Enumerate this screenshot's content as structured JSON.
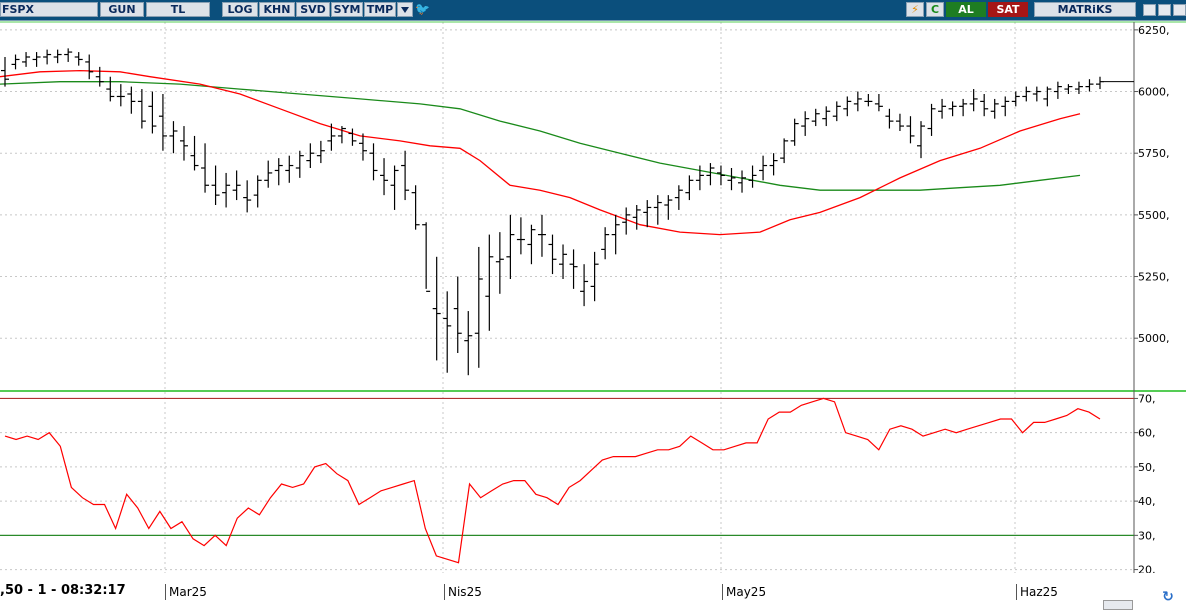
{
  "toolbar": {
    "symbol": "FSPX",
    "buttons": [
      "GUN",
      "TL",
      "LOG",
      "KHN",
      "SVD",
      "SYM",
      "TMP"
    ],
    "flash_icon": "⚡",
    "c_label": "C",
    "buy_label": "AL",
    "sell_label": "SAT",
    "brand": "MATRiKS"
  },
  "status": {
    "text": ",50 - 1 - 08:32:17"
  },
  "chart_data": [
    {
      "type": "ohlc",
      "y_ticks": [
        "6250,",
        "6000,",
        "5750,",
        "5500,",
        "5250,",
        "5000,"
      ],
      "y_tick_values": [
        6250,
        6000,
        5750,
        5500,
        5250,
        5000
      ],
      "ylim": [
        4790,
        6290
      ],
      "x_months": [
        "Mar25",
        "Nis25",
        "May25",
        "Haz25"
      ],
      "ohlc": [
        [
          6085,
          6140,
          6020,
          6050
        ],
        [
          6110,
          6150,
          6090,
          6130
        ],
        [
          6120,
          6160,
          6100,
          6140
        ],
        [
          6130,
          6160,
          6100,
          6140
        ],
        [
          6140,
          6170,
          6110,
          6150
        ],
        [
          6140,
          6170,
          6115,
          6150
        ],
        [
          6150,
          6175,
          6120,
          6160
        ],
        [
          6140,
          6160,
          6105,
          6130
        ],
        [
          6120,
          6150,
          6050,
          6080
        ],
        [
          6060,
          6100,
          6020,
          6040
        ],
        [
          6010,
          6060,
          5960,
          5980
        ],
        [
          5980,
          6030,
          5940,
          5980
        ],
        [
          5990,
          6020,
          5910,
          5960
        ],
        [
          5960,
          6010,
          5850,
          5880
        ],
        [
          5940,
          6000,
          5830,
          5860
        ],
        [
          5900,
          5990,
          5760,
          5820
        ],
        [
          5820,
          5880,
          5750,
          5840
        ],
        [
          5800,
          5860,
          5720,
          5780
        ],
        [
          5740,
          5820,
          5680,
          5700
        ],
        [
          5690,
          5790,
          5590,
          5620
        ],
        [
          5620,
          5700,
          5540,
          5580
        ],
        [
          5590,
          5670,
          5530,
          5620
        ],
        [
          5600,
          5680,
          5560,
          5620
        ],
        [
          5570,
          5640,
          5510,
          5560
        ],
        [
          5580,
          5660,
          5530,
          5640
        ],
        [
          5640,
          5720,
          5610,
          5670
        ],
        [
          5680,
          5730,
          5620,
          5700
        ],
        [
          5680,
          5740,
          5630,
          5700
        ],
        [
          5690,
          5760,
          5650,
          5740
        ],
        [
          5720,
          5790,
          5690,
          5750
        ],
        [
          5740,
          5800,
          5710,
          5760
        ],
        [
          5800,
          5870,
          5760,
          5820
        ],
        [
          5820,
          5860,
          5790,
          5850
        ],
        [
          5830,
          5850,
          5780,
          5800
        ],
        [
          5790,
          5830,
          5720,
          5760
        ],
        [
          5750,
          5790,
          5640,
          5680
        ],
        [
          5660,
          5730,
          5580,
          5640
        ],
        [
          5620,
          5700,
          5520,
          5680
        ],
        [
          5700,
          5760,
          5560,
          5600
        ],
        [
          5590,
          5620,
          5440,
          5460
        ],
        [
          5460,
          5470,
          5200,
          5190
        ],
        [
          5120,
          5330,
          4910,
          5100
        ],
        [
          5080,
          5190,
          4860,
          5050
        ],
        [
          5120,
          5250,
          4940,
          5020
        ],
        [
          4990,
          5110,
          4850,
          5010
        ],
        [
          5020,
          5370,
          4880,
          5240
        ],
        [
          5170,
          5420,
          5030,
          5330
        ],
        [
          5310,
          5430,
          5180,
          5320
        ],
        [
          5330,
          5500,
          5240,
          5420
        ],
        [
          5400,
          5490,
          5340,
          5400
        ],
        [
          5380,
          5460,
          5300,
          5440
        ],
        [
          5420,
          5500,
          5330,
          5420
        ],
        [
          5380,
          5420,
          5260,
          5320
        ],
        [
          5300,
          5380,
          5240,
          5340
        ],
        [
          5300,
          5360,
          5200,
          5290
        ],
        [
          5190,
          5300,
          5130,
          5230
        ],
        [
          5210,
          5350,
          5150,
          5300
        ],
        [
          5360,
          5450,
          5320,
          5420
        ],
        [
          5420,
          5500,
          5340,
          5460
        ],
        [
          5470,
          5530,
          5420,
          5500
        ],
        [
          5490,
          5540,
          5440,
          5520
        ],
        [
          5510,
          5560,
          5450,
          5530
        ],
        [
          5530,
          5580,
          5460,
          5550
        ],
        [
          5540,
          5580,
          5480,
          5560
        ],
        [
          5570,
          5620,
          5520,
          5600
        ],
        [
          5590,
          5660,
          5560,
          5640
        ],
        [
          5640,
          5700,
          5600,
          5660
        ],
        [
          5660,
          5710,
          5620,
          5690
        ],
        [
          5670,
          5700,
          5620,
          5660
        ],
        [
          5640,
          5690,
          5600,
          5650
        ],
        [
          5630,
          5680,
          5590,
          5650
        ],
        [
          5640,
          5700,
          5610,
          5660
        ],
        [
          5680,
          5740,
          5640,
          5700
        ],
        [
          5700,
          5750,
          5660,
          5720
        ],
        [
          5730,
          5810,
          5710,
          5800
        ],
        [
          5800,
          5890,
          5780,
          5870
        ],
        [
          5860,
          5920,
          5820,
          5890
        ],
        [
          5880,
          5930,
          5860,
          5910
        ],
        [
          5890,
          5940,
          5860,
          5920
        ],
        [
          5900,
          5960,
          5880,
          5940
        ],
        [
          5930,
          5980,
          5900,
          5960
        ],
        [
          5950,
          6000,
          5920,
          5970
        ],
        [
          5960,
          5990,
          5940,
          5960
        ],
        [
          5950,
          5990,
          5920,
          5940
        ],
        [
          5900,
          5930,
          5850,
          5880
        ],
        [
          5880,
          5910,
          5840,
          5860
        ],
        [
          5860,
          5900,
          5790,
          5820
        ],
        [
          5780,
          5880,
          5730,
          5860
        ],
        [
          5850,
          5950,
          5820,
          5930
        ],
        [
          5920,
          5970,
          5890,
          5940
        ],
        [
          5930,
          5960,
          5900,
          5940
        ],
        [
          5940,
          5970,
          5900,
          5950
        ],
        [
          5950,
          6010,
          5920,
          5970
        ],
        [
          5960,
          5990,
          5900,
          5930
        ],
        [
          5920,
          5970,
          5890,
          5950
        ],
        [
          5940,
          5980,
          5900,
          5960
        ],
        [
          5960,
          6000,
          5940,
          5980
        ],
        [
          5980,
          6020,
          5960,
          6000
        ],
        [
          5990,
          6020,
          5960,
          6000
        ],
        [
          5970,
          6020,
          5940,
          6010
        ],
        [
          6000,
          6040,
          5970,
          6020
        ],
        [
          6010,
          6030,
          5990,
          6020
        ],
        [
          6010,
          6040,
          5990,
          6020
        ],
        [
          6020,
          6050,
          6000,
          6030
        ],
        [
          6030,
          6060,
          6010,
          6040
        ]
      ],
      "ma_short": [
        [
          0,
          6060
        ],
        [
          40,
          6080
        ],
        [
          80,
          6085
        ],
        [
          120,
          6080
        ],
        [
          150,
          6060
        ],
        [
          200,
          6030
        ],
        [
          240,
          5990
        ],
        [
          280,
          5930
        ],
        [
          320,
          5870
        ],
        [
          360,
          5820
        ],
        [
          400,
          5800
        ],
        [
          430,
          5780
        ],
        [
          460,
          5770
        ],
        [
          480,
          5720
        ],
        [
          510,
          5620
        ],
        [
          540,
          5600
        ],
        [
          570,
          5570
        ],
        [
          600,
          5520
        ],
        [
          640,
          5460
        ],
        [
          680,
          5430
        ],
        [
          720,
          5420
        ],
        [
          760,
          5430
        ],
        [
          790,
          5480
        ],
        [
          820,
          5510
        ],
        [
          860,
          5570
        ],
        [
          900,
          5650
        ],
        [
          940,
          5720
        ],
        [
          980,
          5770
        ],
        [
          1020,
          5840
        ],
        [
          1060,
          5890
        ],
        [
          1080,
          5910
        ]
      ],
      "ma_long": [
        [
          0,
          6030
        ],
        [
          60,
          6040
        ],
        [
          120,
          6040
        ],
        [
          180,
          6030
        ],
        [
          240,
          6010
        ],
        [
          300,
          5990
        ],
        [
          360,
          5970
        ],
        [
          420,
          5950
        ],
        [
          460,
          5930
        ],
        [
          500,
          5880
        ],
        [
          540,
          5840
        ],
        [
          580,
          5790
        ],
        [
          620,
          5750
        ],
        [
          660,
          5710
        ],
        [
          700,
          5680
        ],
        [
          740,
          5650
        ],
        [
          780,
          5620
        ],
        [
          820,
          5600
        ],
        [
          870,
          5600
        ],
        [
          920,
          5600
        ],
        [
          960,
          5610
        ],
        [
          1000,
          5620
        ],
        [
          1040,
          5640
        ],
        [
          1080,
          5660
        ]
      ],
      "ma_short_color": "#ff0000",
      "ma_long_color": "#1a8a1a"
    },
    {
      "type": "line",
      "y_ticks": [
        "70,",
        "60,",
        "50,",
        "40,",
        "30,",
        "20,"
      ],
      "y_tick_values": [
        70,
        60,
        50,
        40,
        30,
        20
      ],
      "ylim": [
        19,
        71
      ],
      "levels": [
        70,
        30
      ],
      "values": [
        59,
        58,
        59,
        58,
        60,
        56,
        44,
        41,
        39,
        39,
        32,
        42,
        38,
        32,
        37,
        32,
        34,
        29,
        27,
        30,
        27,
        35,
        38,
        36,
        41,
        45,
        44,
        45,
        50,
        51,
        48,
        46,
        39,
        41,
        43,
        44,
        45,
        46,
        32,
        24,
        23,
        22,
        45,
        41,
        43,
        45,
        46,
        46,
        42,
        41,
        39,
        44,
        46,
        49,
        52,
        53,
        53,
        53,
        54,
        55,
        55,
        56,
        59,
        57,
        55,
        55,
        56,
        57,
        57,
        64,
        66,
        66,
        68,
        69,
        70,
        69,
        60,
        59,
        58,
        55,
        61,
        62,
        61,
        59,
        60,
        61,
        60,
        61,
        62,
        63,
        64,
        64,
        60,
        63,
        63,
        64,
        65,
        67,
        66,
        64
      ],
      "line_color": "#ff0000"
    }
  ]
}
